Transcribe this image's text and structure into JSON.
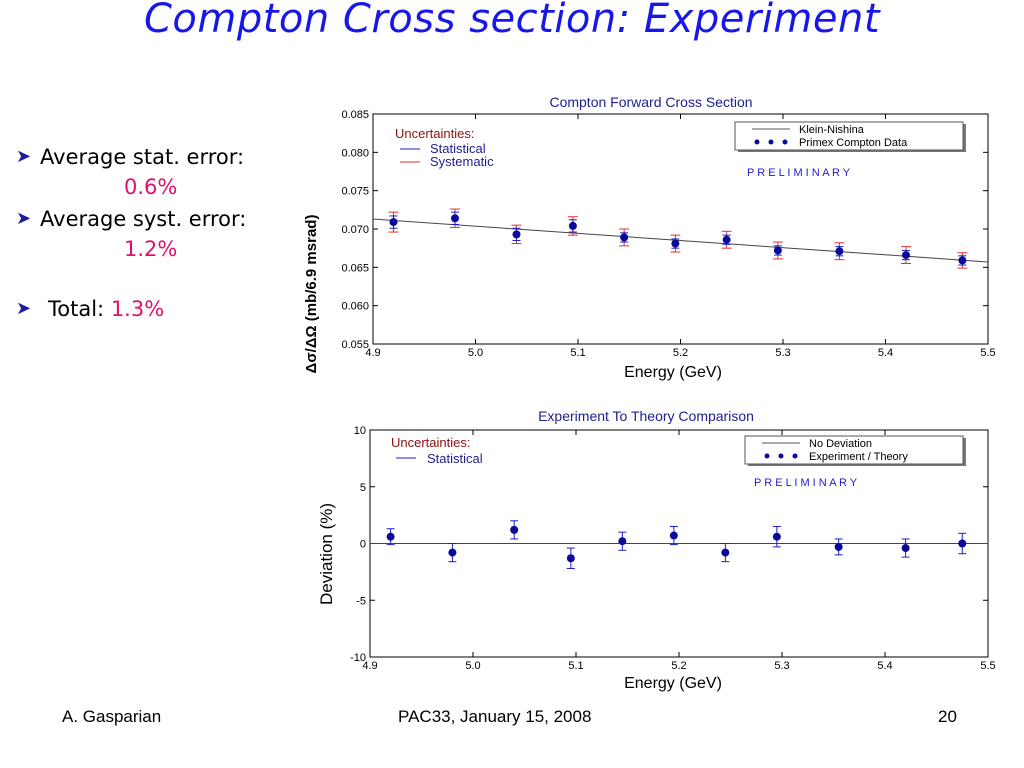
{
  "slide": {
    "title": "Compton Cross section: Experiment",
    "bullets": [
      {
        "label": "Average stat. error:",
        "value": "0.6%"
      },
      {
        "label": "Average syst. error:",
        "value": "1.2%"
      },
      {
        "label": "Total:",
        "value": "1.3%"
      }
    ],
    "footer": {
      "author": "A. Gasparian",
      "event": "PAC33, January 15, 2008",
      "page": "20"
    },
    "colors": {
      "title": "#1717e8",
      "highlight": "#e0106e",
      "points": "#0a0a9a",
      "stat": "#1c1cc8",
      "syst": "#e03030"
    }
  },
  "chart_data": [
    {
      "type": "scatter",
      "title": "Compton Forward Cross Section",
      "xlabel": "Energy (GeV)",
      "ylabel": "Δσ/ΔΩ (mb/6.9 msrad)",
      "xlim": [
        4.9,
        5.5
      ],
      "ylim": [
        0.055,
        0.085
      ],
      "xticks": [
        "4.9",
        "5.0",
        "5.1",
        "5.2",
        "5.3",
        "5.4",
        "5.5"
      ],
      "yticks": [
        "0.055",
        "0.060",
        "0.065",
        "0.070",
        "0.075",
        "0.080",
        "0.085"
      ],
      "uncertainties_label": "Uncertainties:",
      "uncertainty_legend": [
        "Statistical",
        "Systematic"
      ],
      "legend": [
        "Klein-Nishina",
        "Primex Compton Data"
      ],
      "legend_position": "top-right",
      "annotation": "P R E L I M I N A R Y",
      "grid": false,
      "curve": {
        "name": "Klein-Nishina",
        "x": [
          4.9,
          5.5
        ],
        "y": [
          0.0713,
          0.0657
        ]
      },
      "series": [
        {
          "name": "Primex Compton Data",
          "x": [
            4.92,
            4.98,
            5.04,
            5.095,
            5.145,
            5.195,
            5.245,
            5.295,
            5.355,
            5.42,
            5.475
          ],
          "y": [
            0.0709,
            0.0714,
            0.0693,
            0.0704,
            0.0689,
            0.0681,
            0.0686,
            0.0672,
            0.0671,
            0.0666,
            0.0659
          ],
          "stat_err": [
            0.0008,
            0.0008,
            0.0008,
            0.0008,
            0.0006,
            0.0006,
            0.0006,
            0.0006,
            0.0006,
            0.0006,
            0.0006
          ],
          "syst_err": [
            0.0013,
            0.0012,
            0.0012,
            0.0012,
            0.0011,
            0.0011,
            0.0011,
            0.0011,
            0.0011,
            0.0011,
            0.001
          ]
        }
      ]
    },
    {
      "type": "scatter",
      "title": "Experiment To Theory Comparison",
      "xlabel": "Energy (GeV)",
      "ylabel": "Deviation (%)",
      "xlim": [
        4.9,
        5.5
      ],
      "ylim": [
        -10,
        10
      ],
      "xticks": [
        "4.9",
        "5.0",
        "5.1",
        "5.2",
        "5.3",
        "5.4",
        "5.5"
      ],
      "yticks": [
        "-10",
        "-5",
        "0",
        "5",
        "10"
      ],
      "uncertainties_label": "Uncertainties:",
      "uncertainty_legend": [
        "Statistical"
      ],
      "legend": [
        "No Deviation",
        "Experiment / Theory"
      ],
      "legend_position": "top-right",
      "annotation": "P R E L I M I N A R Y",
      "grid": false,
      "curve": {
        "name": "No Deviation",
        "x": [
          4.9,
          5.5
        ],
        "y": [
          0,
          0
        ]
      },
      "series": [
        {
          "name": "Experiment / Theory",
          "x": [
            4.92,
            4.98,
            5.04,
            5.095,
            5.145,
            5.195,
            5.245,
            5.295,
            5.355,
            5.42,
            5.475
          ],
          "y": [
            0.6,
            -0.8,
            1.2,
            -1.3,
            0.2,
            0.7,
            -0.8,
            0.6,
            -0.3,
            -0.4,
            0.0
          ],
          "stat_err": [
            0.7,
            0.8,
            0.8,
            0.9,
            0.8,
            0.8,
            0.8,
            0.9,
            0.7,
            0.8,
            0.9
          ]
        }
      ]
    }
  ]
}
